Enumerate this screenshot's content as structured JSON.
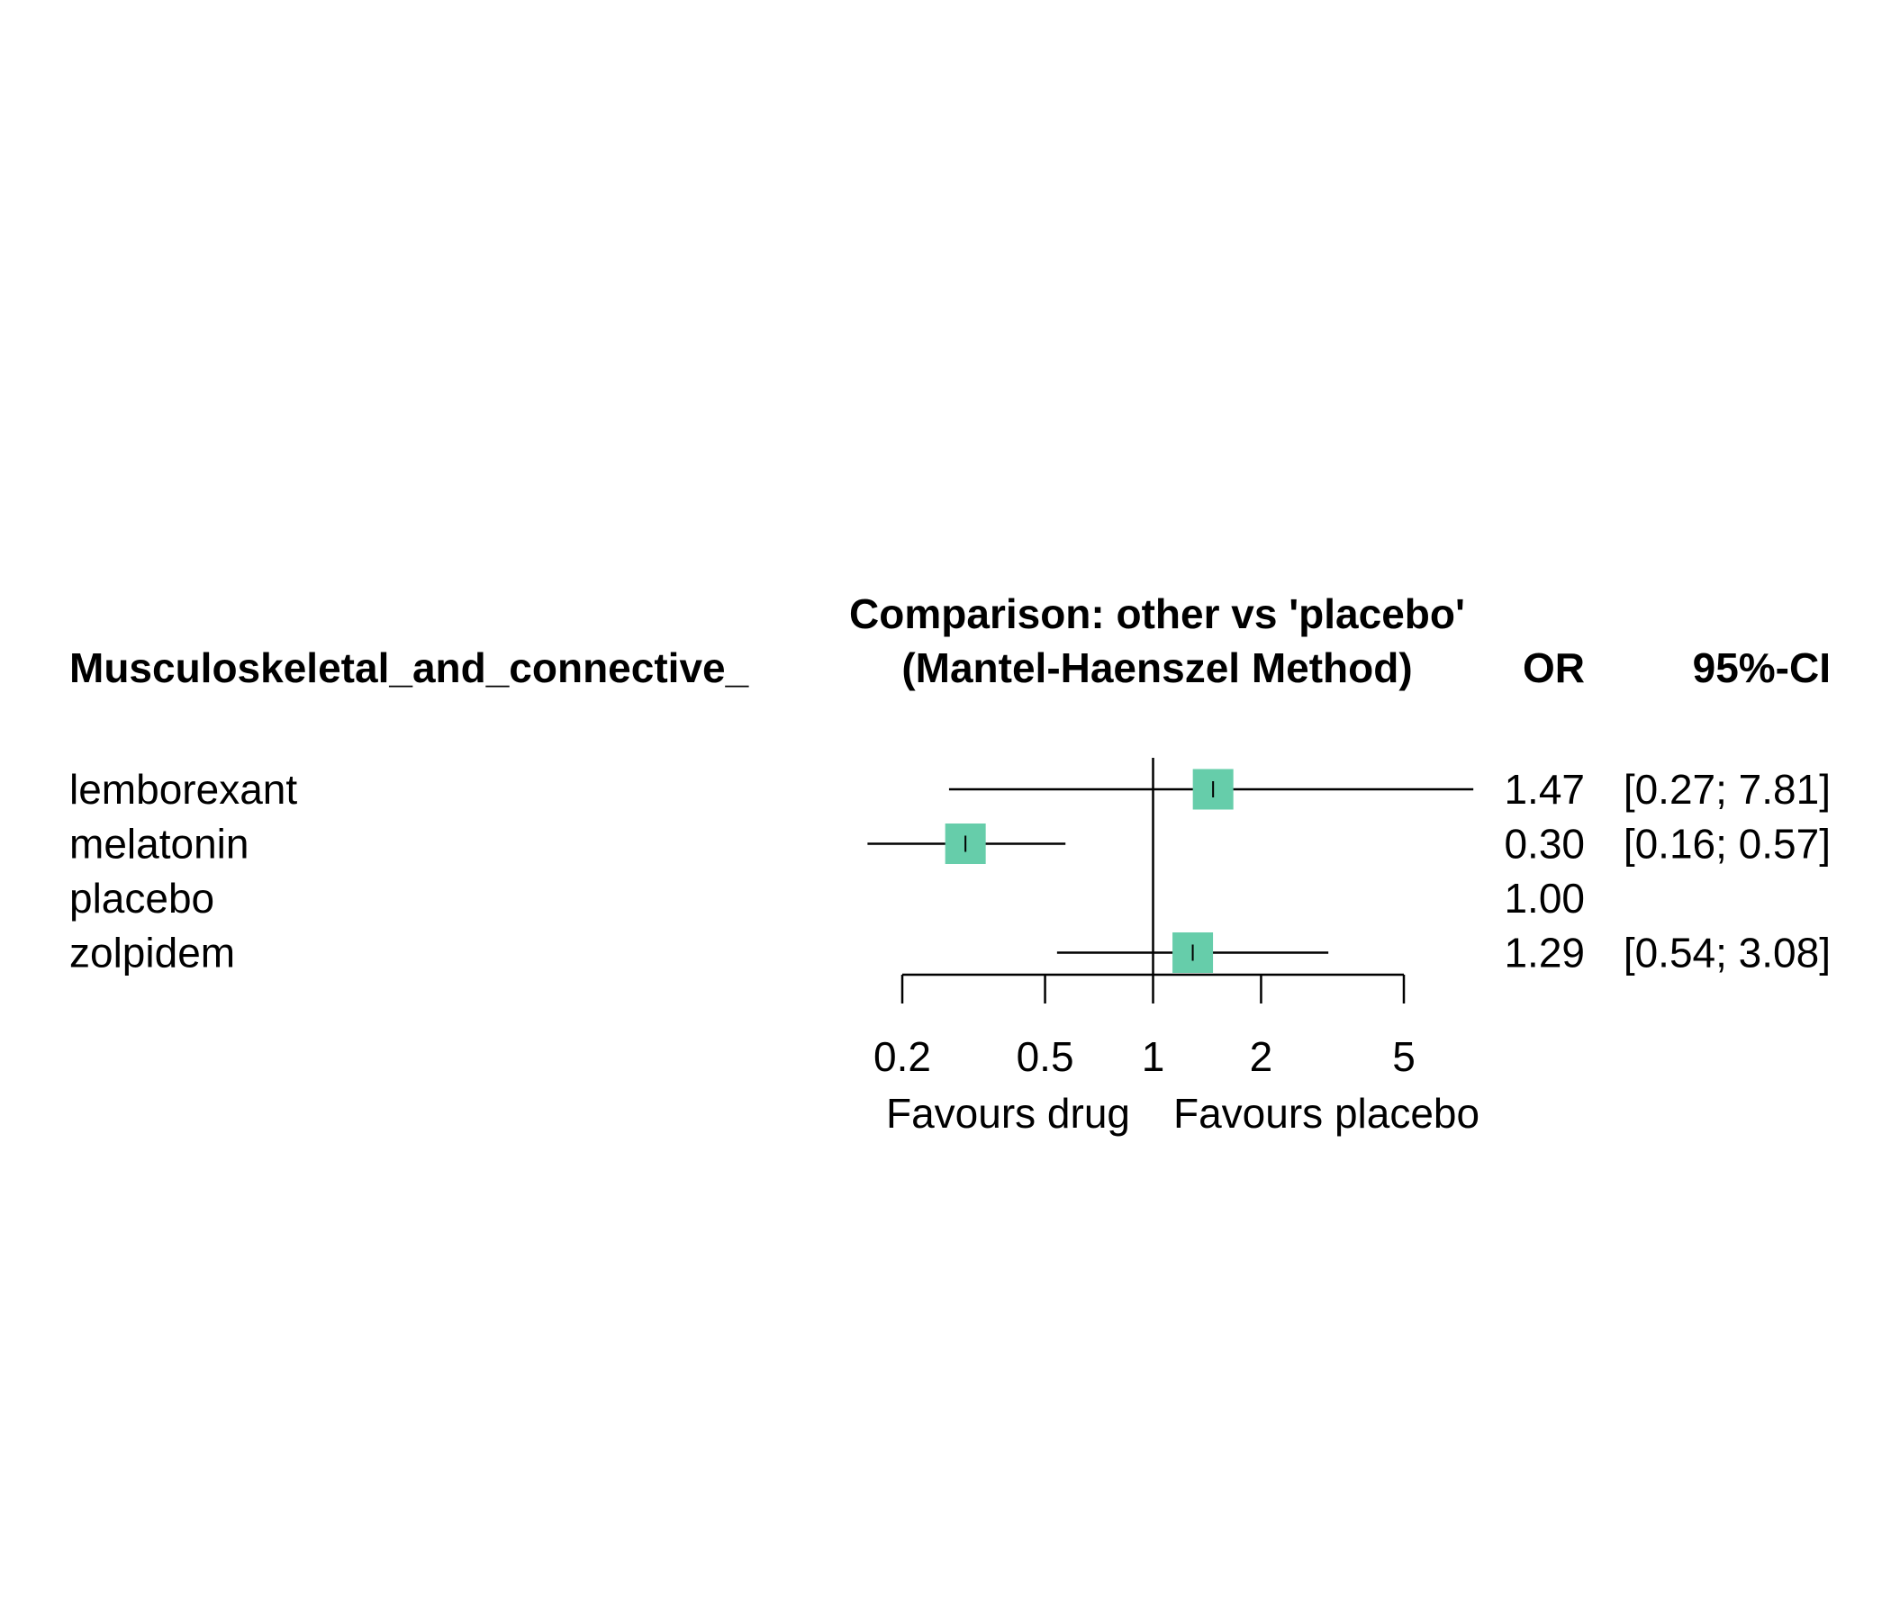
{
  "header": {
    "study_label": "Musculoskeletal_and_connective_",
    "comparison_line1": "Comparison: other vs 'placebo'",
    "comparison_line2": "(Mantel-Haenszel Method)",
    "or_label": "OR",
    "ci_label": "95%-CI"
  },
  "chart_data": {
    "type": "forest",
    "x_scale": "log",
    "xlim": [
      0.2,
      5
    ],
    "x_ticks": [
      0.2,
      0.5,
      1,
      2,
      5
    ],
    "x_tick_labels": [
      "0.2",
      "0.5",
      "1",
      "2",
      "5"
    ],
    "reference_value": 1,
    "favours_left": "Favours drug",
    "favours_right": "Favours placebo",
    "marker_color": "#66CDAA",
    "rows": [
      {
        "label": "lemborexant",
        "or": 1.47,
        "lower": 0.27,
        "upper": 7.81,
        "or_text": "1.47",
        "ci_text": "[0.27; 7.81]"
      },
      {
        "label": "melatonin",
        "or": 0.3,
        "lower": 0.16,
        "upper": 0.57,
        "or_text": "0.30",
        "ci_text": "[0.16; 0.57]"
      },
      {
        "label": "placebo",
        "or": 1.0,
        "lower": null,
        "upper": null,
        "or_text": "1.00",
        "ci_text": ""
      },
      {
        "label": "zolpidem",
        "or": 1.29,
        "lower": 0.54,
        "upper": 3.08,
        "or_text": "1.29",
        "ci_text": "[0.54; 3.08]"
      }
    ]
  }
}
